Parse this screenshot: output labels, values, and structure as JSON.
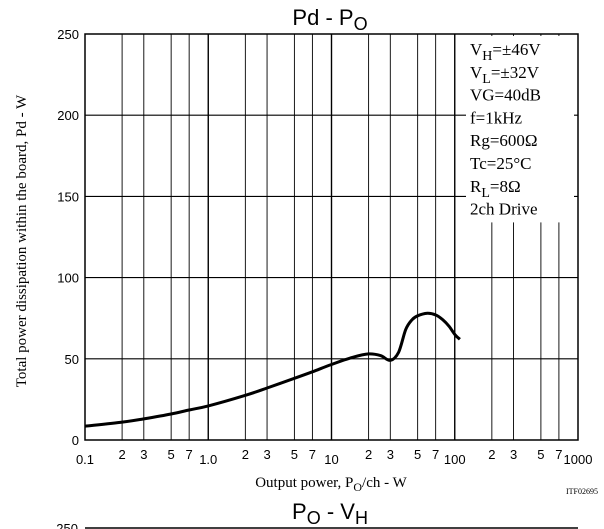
{
  "chart_data": [
    {
      "type": "line",
      "title": "Pd - P",
      "title_sub": "O",
      "xlabel": "Output power, P",
      "xlabel_sub": "O",
      "xlabel_suffix": "/ch - W",
      "ylabel": "Total power dissipation within the board, Pd - W",
      "x_scale": "log",
      "xlim": [
        0.1,
        1000
      ],
      "ylim": [
        0,
        250
      ],
      "grid": true,
      "yticks": [
        {
          "value": 0,
          "label": "0"
        },
        {
          "value": 50,
          "label": "50"
        },
        {
          "value": 100,
          "label": "100"
        },
        {
          "value": 150,
          "label": "150"
        },
        {
          "value": 200,
          "label": "200"
        },
        {
          "value": 250,
          "label": "250"
        }
      ],
      "xticks": [
        {
          "value": 0.1,
          "label": "0.1",
          "major": true
        },
        {
          "value": 0.2,
          "label": "2",
          "major": false
        },
        {
          "value": 0.3,
          "label": "3",
          "major": false
        },
        {
          "value": 0.5,
          "label": "5",
          "major": false
        },
        {
          "value": 0.7,
          "label": "7",
          "major": false
        },
        {
          "value": 1,
          "label": "1.0",
          "major": true
        },
        {
          "value": 2,
          "label": "2",
          "major": false
        },
        {
          "value": 3,
          "label": "3",
          "major": false
        },
        {
          "value": 5,
          "label": "5",
          "major": false
        },
        {
          "value": 7,
          "label": "7",
          "major": false
        },
        {
          "value": 10,
          "label": "10",
          "major": true
        },
        {
          "value": 20,
          "label": "2",
          "major": false
        },
        {
          "value": 30,
          "label": "3",
          "major": false
        },
        {
          "value": 50,
          "label": "5",
          "major": false
        },
        {
          "value": 70,
          "label": "7",
          "major": false
        },
        {
          "value": 100,
          "label": "100",
          "major": true
        },
        {
          "value": 200,
          "label": "2",
          "major": false
        },
        {
          "value": 300,
          "label": "3",
          "major": false
        },
        {
          "value": 500,
          "label": "5",
          "major": false
        },
        {
          "value": 700,
          "label": "7",
          "major": false
        },
        {
          "value": 1000,
          "label": "1000",
          "major": true
        }
      ],
      "annotation_box": [
        {
          "main": "V",
          "sub": "H",
          "rest": "=±46V"
        },
        {
          "main": "V",
          "sub": "L",
          "rest": "=±32V"
        },
        {
          "main": "VG=40dB",
          "sub": "",
          "rest": ""
        },
        {
          "main": "f=1kHz",
          "sub": "",
          "rest": ""
        },
        {
          "main": "Rg=600Ω",
          "sub": "",
          "rest": ""
        },
        {
          "main": "Tc=25°C",
          "sub": "",
          "rest": ""
        },
        {
          "main": "R",
          "sub": "L",
          "rest": "=8Ω"
        },
        {
          "main": "2ch Drive",
          "sub": "",
          "rest": ""
        }
      ],
      "code_label": "ITF02695",
      "series": [
        {
          "x": [
            0.1,
            0.2,
            0.3,
            0.5,
            0.7,
            1,
            2,
            3,
            5,
            7,
            10,
            15,
            20,
            25,
            30,
            35,
            40,
            45,
            50,
            60,
            70,
            80,
            90,
            100,
            110
          ],
          "y": [
            8.5,
            11,
            13,
            16,
            18.5,
            21,
            27.5,
            32,
            38,
            42,
            46.5,
            51,
            53,
            52,
            49,
            54,
            68,
            74,
            76.5,
            78,
            77,
            74,
            70,
            65,
            62
          ],
          "color": "#000000"
        }
      ]
    },
    {
      "type": "line",
      "partial": true,
      "title": "P",
      "title_sub": "O",
      "title_mid": " - V",
      "title_sub2": "H",
      "yticks": [
        {
          "value": 250,
          "label": "250"
        }
      ]
    }
  ]
}
